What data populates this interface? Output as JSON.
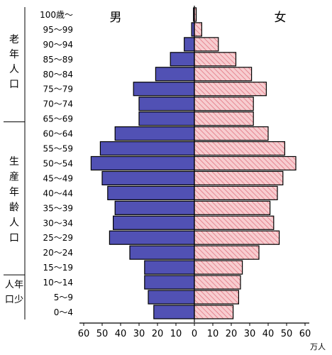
{
  "chart_data": {
    "type": "bar",
    "orientation": "horizontal-population-pyramid",
    "categories": [
      "100歳～",
      "95～99",
      "90～94",
      "85～89",
      "80～84",
      "75～79",
      "70～74",
      "65～69",
      "60～64",
      "55～59",
      "50～54",
      "45～49",
      "40～44",
      "35～39",
      "30～34",
      "25～29",
      "20～24",
      "15～19",
      "10～14",
      "5～9",
      "0～4"
    ],
    "series": [
      {
        "name": "男",
        "values": [
          0.5,
          1.5,
          5.5,
          13,
          21,
          33,
          30,
          30,
          43,
          51,
          56,
          50,
          47,
          43,
          44,
          46,
          35,
          27,
          27,
          25,
          22
        ]
      },
      {
        "name": "女",
        "values": [
          1.0,
          4.0,
          13,
          22.5,
          31,
          39,
          32,
          32,
          40,
          49,
          55,
          48,
          45,
          41,
          43,
          46,
          35,
          26,
          25,
          24,
          21
        ]
      }
    ],
    "colors": {
      "male": "#5151b4",
      "female": "#f5c7ca",
      "female_hatch": "#e06070"
    },
    "xticks": [
      "60",
      "50",
      "40",
      "30",
      "20",
      "10",
      "0",
      "10",
      "20",
      "30",
      "40",
      "50",
      "60"
    ],
    "xunit": "万人",
    "xlim": [
      0,
      60
    ],
    "groups": [
      {
        "label": "老年人口",
        "from": 0,
        "to": 7
      },
      {
        "label": "生産年齢人口",
        "from": 8,
        "to": 17
      },
      {
        "label": "年少人口",
        "from": 18,
        "to": 20
      }
    ]
  }
}
